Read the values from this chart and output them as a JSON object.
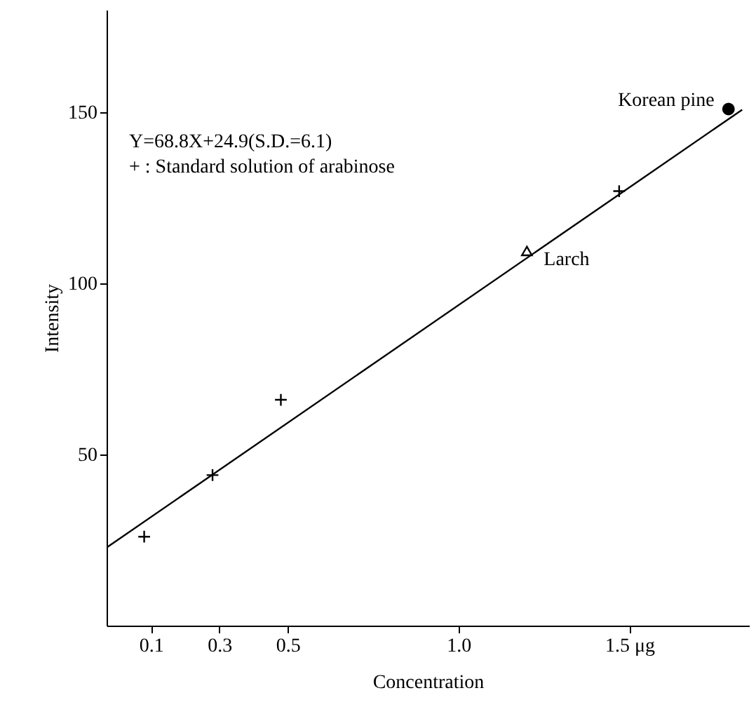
{
  "chart_data": {
    "type": "scatter",
    "xlabel": "Concentration",
    "ylabel": "Intensity",
    "annotations": [
      "Y=68.8X+24.9(S.D.=6.1)",
      "+ : Standard solution of arabinose"
    ],
    "xlim": [
      -0.03,
      1.85
    ],
    "ylim": [
      0,
      180
    ],
    "xticks": [
      0.1,
      0.3,
      0.5,
      {
        "value": 1.0,
        "label": "1.0"
      },
      {
        "value": 1.5,
        "label": "1.5 μg"
      }
    ],
    "yticks": [
      50,
      100,
      150
    ],
    "series": [
      {
        "type": "line",
        "color": "#000000",
        "line_style": "solid",
        "x": [
          -0.03,
          1.83
        ],
        "values": [
          22.8,
          150.8
        ]
      },
      {
        "color": "#000000",
        "marker": "cross",
        "x": [
          0.08,
          0.28,
          0.48,
          1.47
        ],
        "values": [
          26,
          44,
          66,
          127
        ]
      },
      {
        "name": "Larch",
        "color": "#000000",
        "marker": "triangle",
        "x": [
          1.2
        ],
        "values": [
          109.5
        ]
      },
      {
        "name": "Korean pine",
        "color": "#000000",
        "marker": "circle",
        "x": [
          1.79
        ],
        "values": [
          151
        ]
      }
    ]
  }
}
